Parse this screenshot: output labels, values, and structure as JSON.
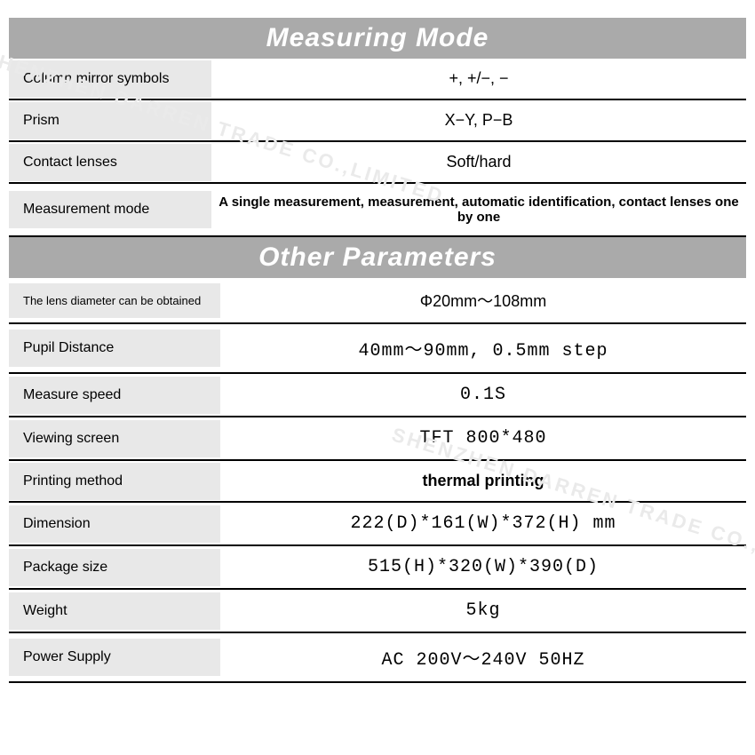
{
  "watermark": {
    "text": "SHENZHEN  DARREN TRADE CO.,LIMITED",
    "color": "#eaeaea"
  },
  "sections": [
    {
      "title": "Measuring Mode",
      "rows": [
        {
          "label": "Column mirror symbols",
          "value": "+, +/−, −",
          "value_class": ""
        },
        {
          "label": "Prism",
          "value": "X−Y, P−B",
          "value_class": ""
        },
        {
          "label": "Contact lenses",
          "value": "Soft/hard",
          "value_class": ""
        },
        {
          "label": "Measurement mode",
          "value": "A single measurement, measurement, automatic identification, contact lenses one by one",
          "value_class": "small"
        }
      ]
    },
    {
      "title": "Other Parameters",
      "rows": [
        {
          "label": "The lens diameter can be obtained",
          "label_class": "tiny",
          "value": "Φ20mm～108mm",
          "value_class": ""
        },
        {
          "label": "Pupil Distance",
          "value": "40mm～90mm, 0.5mm step",
          "value_class": "mono"
        },
        {
          "label": "Measure speed",
          "value": "0.1S",
          "value_class": "mono"
        },
        {
          "label": "Viewing screen",
          "value": "TFT   800*480",
          "value_class": "mono"
        },
        {
          "label": "Printing method",
          "value": "thermal printing",
          "value_class": "bold"
        },
        {
          "label": "Dimension",
          "value": "222(D)*161(W)*372(H) mm",
          "value_class": "mono"
        },
        {
          "label": "Package size",
          "value": "515(H)*320(W)*390(D)",
          "value_class": "mono"
        },
        {
          "label": "Weight",
          "value": "5kg",
          "value_class": "mono"
        },
        {
          "label": "Power Supply",
          "value": "AC 200V～240V 50HZ",
          "value_class": "mono"
        }
      ]
    }
  ],
  "style": {
    "header_bg": "#aaaaaa",
    "header_fg": "#ffffff",
    "label_bg": "#e8e8e8",
    "border_color": "#000000"
  }
}
